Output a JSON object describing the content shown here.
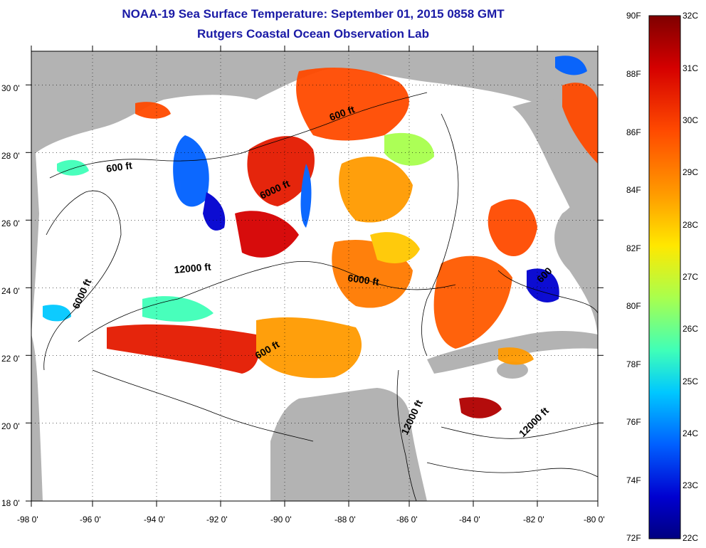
{
  "title": {
    "line1": "NOAA-19 Sea Surface Temperature:  September 01, 2015 0858 GMT",
    "line2": "Rutgers Coastal Ocean Observation Lab"
  },
  "map": {
    "lon_labels": [
      "-98 0'",
      "-96 0'",
      "-94 0'",
      "-92 0'",
      "-90 0'",
      "-88 0'",
      "-86 0'",
      "-84 0'",
      "-82 0'",
      "-80 0'"
    ],
    "lat_labels": [
      "30 0'",
      "28 0'",
      "26 0'",
      "24 0'",
      "22 0'",
      "20 0'",
      "18 0'"
    ],
    "contour_labels": [
      "600 ft",
      "600 ft",
      "6000 ft",
      "12000 ft",
      "6000 ft",
      "6000 ft",
      "600 ft",
      "12000 ft",
      "12000 ft",
      "600"
    ],
    "colors": {
      "land": "#b3b3b3",
      "ocean_nodata": "#ffffff",
      "contour": "#000000"
    }
  },
  "colorbar": {
    "fahrenheit_labels": [
      "90F",
      "88F",
      "86F",
      "84F",
      "82F",
      "80F",
      "78F",
      "76F",
      "74F",
      "72F"
    ],
    "celsius_labels": [
      "32C",
      "31C",
      "30C",
      "29C",
      "28C",
      "27C",
      "26C",
      "25C",
      "24C",
      "23C",
      "22C"
    ],
    "palette": [
      "#7f0000",
      "#d50000",
      "#ff4a00",
      "#ff9a00",
      "#ffe800",
      "#a8ff4e",
      "#3fffb8",
      "#00c8ff",
      "#0060ff",
      "#0000d0",
      "#000080"
    ]
  }
}
